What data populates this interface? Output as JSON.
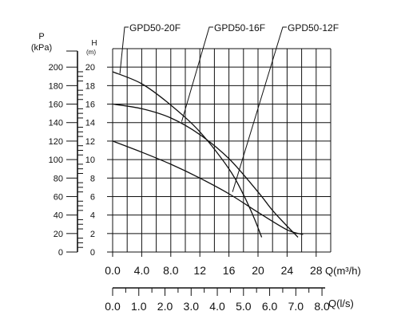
{
  "chart_data": {
    "type": "line",
    "p_axis": {
      "title_line1": "P",
      "title_line2": "(kPa)",
      "ticks": [
        0,
        20,
        40,
        60,
        80,
        100,
        120,
        140,
        160,
        180,
        200
      ],
      "tick_labels": [
        "0",
        "20",
        "40",
        "60",
        "80",
        "100",
        "120",
        "140",
        "160",
        "180",
        "200"
      ]
    },
    "h_axis": {
      "title_line1": "H",
      "title_line2": "(m)",
      "ticks": [
        0,
        2,
        4,
        6,
        8,
        10,
        12,
        14,
        16,
        18,
        20
      ],
      "tick_labels": [
        "0",
        "2",
        "4",
        "6",
        "8",
        "10",
        "12",
        "14",
        "16",
        "18",
        "20"
      ],
      "ylim": [
        0,
        22
      ]
    },
    "q_m3h_axis": {
      "label": "Q(m³/h)",
      "ticks": [
        0,
        4,
        8,
        12,
        16,
        20,
        24,
        28
      ],
      "tick_labels": [
        "0.0",
        "4.0",
        "8.0",
        "12",
        "16",
        "20",
        "24",
        "28"
      ],
      "xlim": [
        0,
        30
      ]
    },
    "q_ls_axis": {
      "label": "Q(l/s)",
      "ticks": [
        0,
        1,
        2,
        3,
        4,
        5,
        6,
        7,
        8
      ],
      "tick_labels": [
        "0.0",
        "1.0",
        "2.0",
        "3.0",
        "4.0",
        "5.0",
        "6.0",
        "7.0",
        "8.0"
      ]
    },
    "grid": true,
    "series": [
      {
        "name": "GPD50-20F",
        "x": [
          0,
          4,
          8,
          12,
          16,
          18,
          19.5,
          20.5
        ],
        "y": [
          19.5,
          18.2,
          15.9,
          13.0,
          9.0,
          6.2,
          3.6,
          1.6
        ]
      },
      {
        "name": "GPD50-16F",
        "x": [
          0,
          4,
          8,
          12,
          16,
          20,
          22,
          24,
          25.5
        ],
        "y": [
          16.0,
          15.5,
          14.5,
          12.7,
          10.1,
          6.5,
          4.5,
          2.8,
          1.6
        ]
      },
      {
        "name": "GPD50-12F",
        "x": [
          0,
          4,
          8,
          12,
          16,
          20,
          24,
          26.2
        ],
        "y": [
          12.0,
          10.8,
          9.5,
          8.0,
          6.3,
          4.3,
          2.4,
          1.9
        ]
      }
    ],
    "legend_labels": [
      "GPD50-20F",
      "GPD50-16F",
      "GPD50-12F"
    ]
  }
}
